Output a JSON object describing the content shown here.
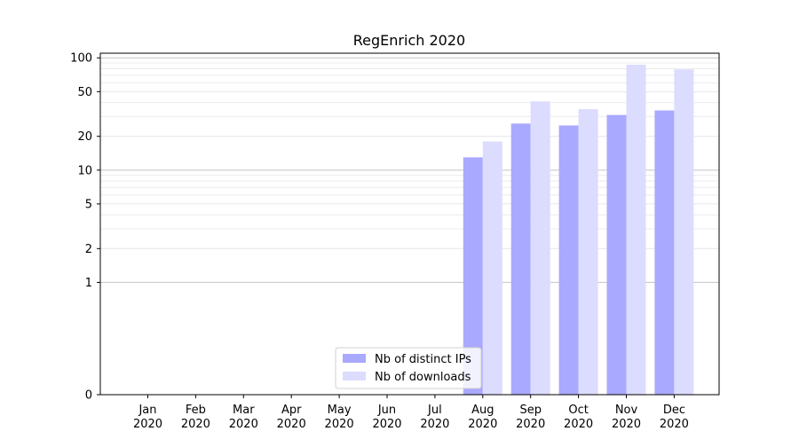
{
  "chart_data": {
    "type": "bar",
    "title": "RegEnrich 2020",
    "xlabel": "",
    "ylabel": "",
    "y_scale": "symlog",
    "ylim": [
      0,
      110
    ],
    "y_ticks": [
      0,
      1,
      2,
      5,
      10,
      20,
      50,
      100
    ],
    "y_tick_labels": [
      "0",
      "1",
      "2",
      "5",
      "10",
      "20",
      "50",
      "100"
    ],
    "grid": true,
    "legend_position": "bottom-center",
    "categories": [
      "Jan\n2020",
      "Feb\n2020",
      "Mar\n2020",
      "Apr\n2020",
      "May\n2020",
      "Jun\n2020",
      "Jul\n2020",
      "Aug\n2020",
      "Sep\n2020",
      "Oct\n2020",
      "Nov\n2020",
      "Dec\n2020"
    ],
    "series": [
      {
        "name": "Nb of distinct IPs",
        "color": "#a9a9ff",
        "values": [
          0,
          0,
          0,
          0,
          0,
          0,
          0,
          13,
          26,
          25,
          31,
          34
        ]
      },
      {
        "name": "Nb of downloads",
        "color": "#dcdcff",
        "values": [
          0,
          0,
          0,
          0,
          0,
          0,
          0,
          18,
          41,
          35,
          87,
          79
        ]
      }
    ]
  }
}
